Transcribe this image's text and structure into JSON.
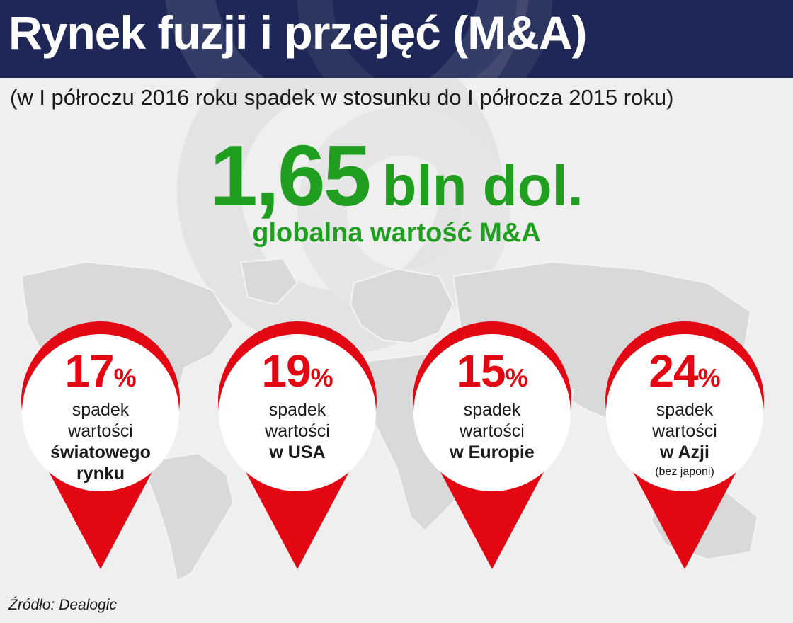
{
  "header": {
    "title": "Rynek fuzji i przejęć (M&A)"
  },
  "subtitle": "(w I półroczu 2016 roku spadek w stosunku do I półrocza 2015 roku)",
  "highlight": {
    "value": "1,65",
    "unit": "bln dol.",
    "caption": "globalna wartość M&A"
  },
  "colors": {
    "header_bg": "#1e2756",
    "accent_green": "#1f9e1f",
    "pin_red": "#e30613"
  },
  "pins": [
    {
      "percent": "17",
      "percent_sign": "%",
      "line1": "spadek",
      "line2": "wartości",
      "line3": "światowego",
      "line4": "rynku",
      "note": ""
    },
    {
      "percent": "19",
      "percent_sign": "%",
      "line1": "spadek",
      "line2": "wartości",
      "line3": "w USA",
      "line4": "",
      "note": ""
    },
    {
      "percent": "15",
      "percent_sign": "%",
      "line1": "spadek",
      "line2": "wartości",
      "line3": "w Europie",
      "line4": "",
      "note": ""
    },
    {
      "percent": "24",
      "percent_sign": "%",
      "line1": "spadek",
      "line2": "wartości",
      "line3": "w Azji",
      "line4": "",
      "note": "(bez japoni)"
    }
  ],
  "source": "Źródło: Dealogic"
}
